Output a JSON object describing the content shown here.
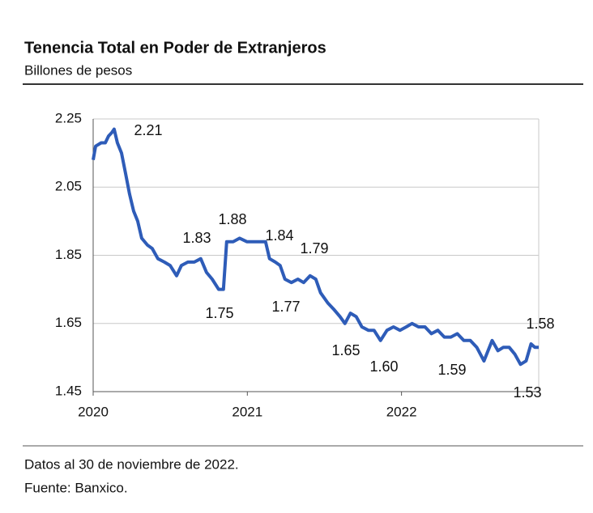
{
  "chart_data": {
    "type": "line",
    "title": "Tenencia Total en Poder de Extranjeros",
    "subtitle": "Billones de pesos",
    "xlim": [
      2020,
      2022.89
    ],
    "xticks": [
      2020,
      2021,
      2022
    ],
    "ylim": [
      1.45,
      2.25
    ],
    "yticks": [
      {
        "value": 1.45,
        "label": "1.45"
      },
      {
        "value": 1.65,
        "label": "1.65"
      },
      {
        "value": 1.85,
        "label": "1.85"
      },
      {
        "value": 2.05,
        "label": "2.05"
      },
      {
        "value": 2.25,
        "label": "2.25"
      }
    ],
    "grid": true,
    "series": [
      {
        "color": "#2e5cb8",
        "x": [
          2020.0,
          2020.016,
          2020.052,
          2020.079,
          2020.1,
          2020.121,
          2020.136,
          2020.157,
          2020.184,
          2020.21,
          2020.236,
          2020.262,
          2020.289,
          2020.315,
          2020.352,
          2020.383,
          2020.42,
          2020.462,
          2020.499,
          2020.541,
          2020.572,
          2020.614,
          2020.656,
          2020.698,
          2020.735,
          2020.772,
          2020.814,
          2020.845,
          2020.866,
          2020.908,
          2020.95,
          2020.997,
          2021.05,
          2021.087,
          2021.118,
          2021.144,
          2021.181,
          2021.213,
          2021.244,
          2021.286,
          2021.328,
          2021.365,
          2021.407,
          2021.444,
          2021.475,
          2021.522,
          2021.564,
          2021.601,
          2021.633,
          2021.669,
          2021.706,
          2021.743,
          2021.785,
          2021.822,
          2021.864,
          2021.906,
          2021.948,
          2021.99,
          2022.031,
          2022.068,
          2022.11,
          2022.152,
          2022.194,
          2022.236,
          2022.278,
          2022.32,
          2022.362,
          2022.404,
          2022.446,
          2022.488,
          2022.535,
          2022.588,
          2022.625,
          2022.661,
          2022.698,
          2022.735,
          2022.772,
          2022.808,
          2022.84,
          2022.865,
          2022.89
        ],
        "values": [
          2.13,
          2.17,
          2.18,
          2.18,
          2.2,
          2.21,
          2.22,
          2.18,
          2.15,
          2.09,
          2.03,
          1.98,
          1.95,
          1.9,
          1.88,
          1.87,
          1.84,
          1.83,
          1.82,
          1.79,
          1.82,
          1.83,
          1.83,
          1.84,
          1.8,
          1.78,
          1.75,
          1.75,
          1.89,
          1.89,
          1.9,
          1.89,
          1.89,
          1.89,
          1.89,
          1.84,
          1.83,
          1.82,
          1.78,
          1.77,
          1.78,
          1.77,
          1.79,
          1.78,
          1.74,
          1.71,
          1.69,
          1.67,
          1.65,
          1.68,
          1.67,
          1.64,
          1.63,
          1.63,
          1.6,
          1.63,
          1.64,
          1.63,
          1.64,
          1.65,
          1.64,
          1.64,
          1.62,
          1.63,
          1.61,
          1.61,
          1.62,
          1.6,
          1.6,
          1.58,
          1.54,
          1.6,
          1.57,
          1.58,
          1.58,
          1.56,
          1.53,
          1.54,
          1.59,
          1.58,
          1.58
        ]
      }
    ],
    "annotations": [
      2.21,
      1.83,
      1.88,
      1.84,
      1.79,
      1.75,
      1.77,
      1.65,
      1.6,
      1.59,
      1.58,
      1.53
    ],
    "annotation_labels": [
      "2.21",
      "1.83",
      "1.88",
      "1.84",
      "1.79",
      "1.75",
      "1.77",
      "1.65",
      "1.60",
      "1.59",
      "1.58",
      "1.53"
    ]
  },
  "notes": [
    "Datos al 30 de noviembre de 2022.",
    "Fuente: Banxico."
  ]
}
